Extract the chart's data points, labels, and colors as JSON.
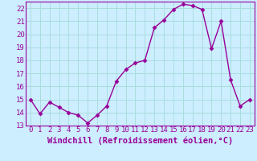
{
  "x": [
    0,
    1,
    2,
    3,
    4,
    5,
    6,
    7,
    8,
    9,
    10,
    11,
    12,
    13,
    14,
    15,
    16,
    17,
    18,
    19,
    20,
    21,
    22,
    23
  ],
  "y": [
    15.0,
    13.9,
    14.8,
    14.4,
    14.0,
    13.8,
    13.2,
    13.8,
    14.5,
    16.4,
    17.3,
    17.8,
    18.0,
    20.5,
    21.1,
    21.9,
    22.3,
    22.2,
    21.9,
    18.9,
    21.0,
    16.5,
    14.5,
    15.0
  ],
  "line_color": "#990099",
  "marker": "D",
  "marker_size": 2.5,
  "bg_color": "#cceeff",
  "grid_color": "#aadddd",
  "xlabel": "Windchill (Refroidissement éolien,°C)",
  "xlim": [
    -0.5,
    23.5
  ],
  "ylim": [
    13.0,
    22.5
  ],
  "yticks": [
    13,
    14,
    15,
    16,
    17,
    18,
    19,
    20,
    21,
    22
  ],
  "xticks": [
    0,
    1,
    2,
    3,
    4,
    5,
    6,
    7,
    8,
    9,
    10,
    11,
    12,
    13,
    14,
    15,
    16,
    17,
    18,
    19,
    20,
    21,
    22,
    23
  ],
  "tick_label_fontsize": 6.5,
  "xlabel_fontsize": 7.5,
  "tick_color": "#990099",
  "axis_color": "#990099",
  "linewidth": 1.0
}
